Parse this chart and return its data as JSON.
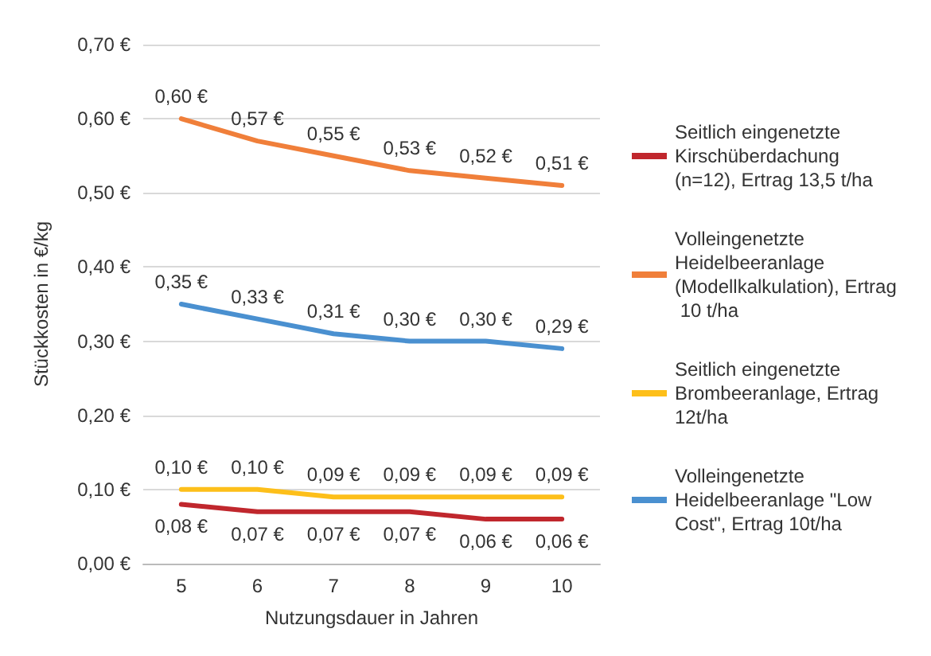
{
  "chart_data": {
    "type": "line",
    "xlabel": "Nutzungsdauer in Jahren",
    "ylabel": "Stückkosten in €/kg",
    "categories": [
      "5",
      "6",
      "7",
      "8",
      "9",
      "10"
    ],
    "series": [
      {
        "name": "Seitlich eingenetzte Kirschüberdachung (n=12), Ertrag 13,5 t/ha",
        "color": "#c0272d",
        "values": [
          0.08,
          0.07,
          0.07,
          0.07,
          0.06,
          0.06
        ],
        "value_labels": [
          "0,08 €",
          "0,07 €",
          "0,07 €",
          "0,07 €",
          "0,06 €",
          "0,06 €"
        ]
      },
      {
        "name": "Volleingenetzte Heidelbeeranlage (Modellkalkulation), Ertrag 10 t/ha",
        "color": "#f07f3a",
        "values": [
          0.6,
          0.57,
          0.55,
          0.53,
          0.52,
          0.51
        ],
        "value_labels": [
          "0,60 €",
          "0,57 €",
          "0,55 €",
          "0,53 €",
          "0,52 €",
          "0,51 €"
        ]
      },
      {
        "name": "Seitlich eingenetzte Brombeeranlage, Ertrag 12t/ha",
        "color": "#fdbf1a",
        "values": [
          0.1,
          0.1,
          0.09,
          0.09,
          0.09,
          0.09
        ],
        "value_labels": [
          "0,10 €",
          "0,10 €",
          "0,09 €",
          "0,09 €",
          "0,09 €",
          "0,09 €"
        ]
      },
      {
        "name": "Volleingenetzte Heidelbeeranlage \"Low Cost\", Ertrag 10t/ha",
        "color": "#4a90d0",
        "values": [
          0.35,
          0.33,
          0.31,
          0.3,
          0.3,
          0.29
        ],
        "value_labels": [
          "0,35 €",
          "0,33 €",
          "0,31 €",
          "0,30 €",
          "0,30 €",
          "0,29 €"
        ]
      }
    ],
    "ylim": [
      0,
      0.7
    ],
    "yticks": [
      {
        "value": 0,
        "label": "0,00 €"
      },
      {
        "value": 0.1,
        "label": "0,10 €"
      },
      {
        "value": 0.2,
        "label": "0,20 €"
      },
      {
        "value": 0.3,
        "label": "0,30 €"
      },
      {
        "value": 0.4,
        "label": "0,40 €"
      },
      {
        "value": 0.5,
        "label": "0,50 €"
      },
      {
        "value": 0.6,
        "label": "0,60 €"
      },
      {
        "value": 0.7,
        "label": "0,70 €"
      }
    ],
    "grid": "y",
    "legend": "right",
    "marker": "none",
    "line_style": "solid"
  }
}
